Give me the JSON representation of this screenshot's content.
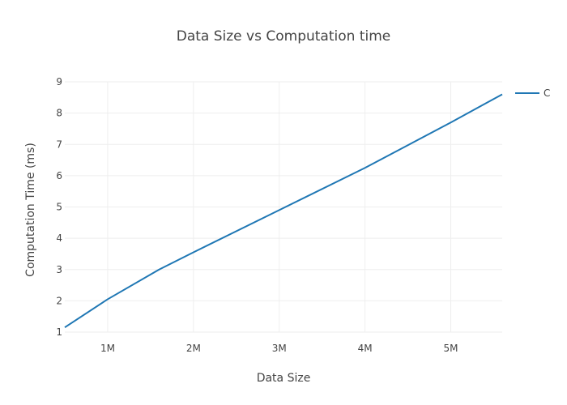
{
  "chart_data": {
    "type": "line",
    "title": "Data Size vs Computation time",
    "xlabel": "Data Size",
    "ylabel": "Computation Time (ms)",
    "xlim": [
      500000,
      5600000
    ],
    "ylim": [
      1,
      9
    ],
    "x_ticks": [
      1000000,
      2000000,
      3000000,
      4000000,
      5000000
    ],
    "x_tick_labels": [
      "1M",
      "2M",
      "3M",
      "4M",
      "5M"
    ],
    "y_ticks": [
      1,
      2,
      3,
      4,
      5,
      6,
      7,
      8,
      9
    ],
    "y_tick_labels": [
      "1",
      "2",
      "3",
      "4",
      "5",
      "6",
      "7",
      "8",
      "9"
    ],
    "grid": true,
    "legend_position": "top-right",
    "series": [
      {
        "name": "C",
        "color": "#1f77b4",
        "x": [
          500000,
          1000000,
          1600000,
          2000000,
          3000000,
          4000000,
          5000000,
          5600000
        ],
        "y": [
          1.15,
          2.05,
          3.0,
          3.55,
          4.9,
          6.25,
          7.7,
          8.6
        ]
      }
    ]
  }
}
